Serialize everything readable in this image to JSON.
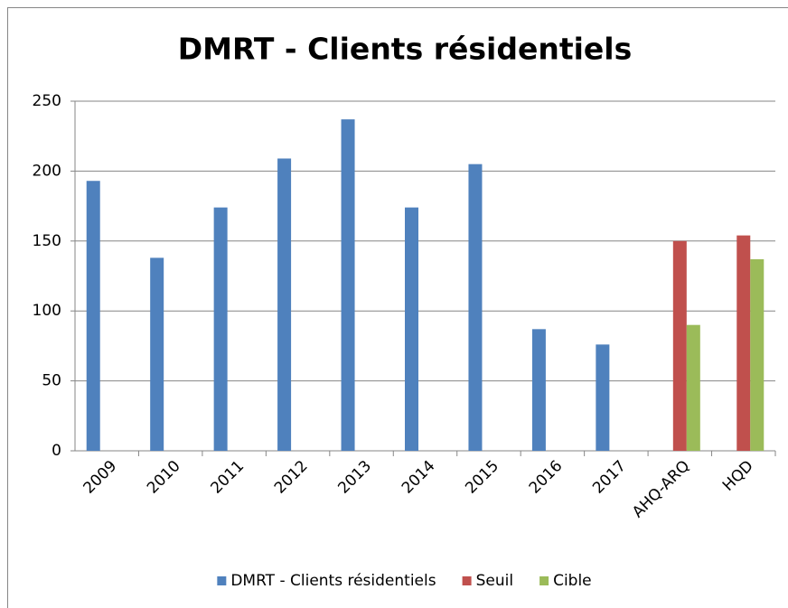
{
  "chart_data": {
    "type": "bar",
    "title": "DMRT - Clients résidentiels",
    "categories": [
      "2009",
      "2010",
      "2011",
      "2012",
      "2013",
      "2014",
      "2015",
      "2016",
      "2017",
      "AHQ-ARQ",
      "HQD"
    ],
    "series": [
      {
        "name": "DMRT - Clients résidentiels",
        "color": "#4f81bd",
        "values": [
          193,
          138,
          174,
          209,
          237,
          174,
          205,
          87,
          76,
          null,
          null
        ]
      },
      {
        "name": "Seuil",
        "color": "#c0504d",
        "values": [
          null,
          null,
          null,
          null,
          null,
          null,
          null,
          null,
          null,
          150,
          154
        ]
      },
      {
        "name": "Cible",
        "color": "#9bbb59",
        "values": [
          null,
          null,
          null,
          null,
          null,
          null,
          null,
          null,
          null,
          90,
          137
        ]
      }
    ],
    "ylim": [
      0,
      250
    ],
    "yticks": [
      0,
      50,
      100,
      150,
      200,
      250
    ],
    "grid": true,
    "legend": "bottom"
  }
}
